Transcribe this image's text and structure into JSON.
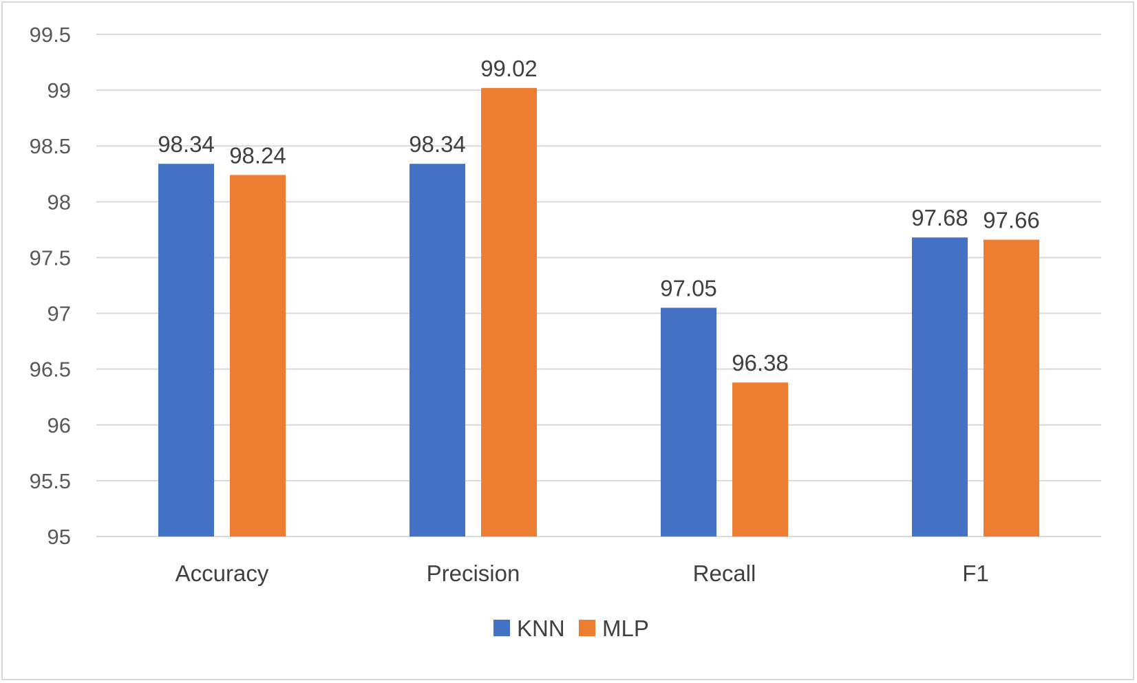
{
  "chart_data": {
    "type": "bar",
    "categories": [
      "Accuracy",
      "Precision",
      "Recall",
      "F1"
    ],
    "series": [
      {
        "name": "KNN",
        "color": "#4472c4",
        "values": [
          98.34,
          98.34,
          97.05,
          97.68
        ],
        "labels": [
          "98.34",
          "98.34",
          "97.05",
          "97.68"
        ]
      },
      {
        "name": "MLP",
        "color": "#ed7d31",
        "values": [
          98.24,
          99.02,
          96.38,
          97.66
        ],
        "labels": [
          "98.24",
          "99.02",
          "96.38",
          "97.66"
        ]
      }
    ],
    "y_ticks": [
      "95",
      "95.5",
      "96",
      "96.5",
      "97",
      "97.5",
      "98",
      "98.5",
      "99",
      "99.5"
    ],
    "ylim": [
      95,
      99.5
    ],
    "grid": true,
    "legend_position": "bottom",
    "title": "",
    "xlabel": "",
    "ylabel": ""
  }
}
